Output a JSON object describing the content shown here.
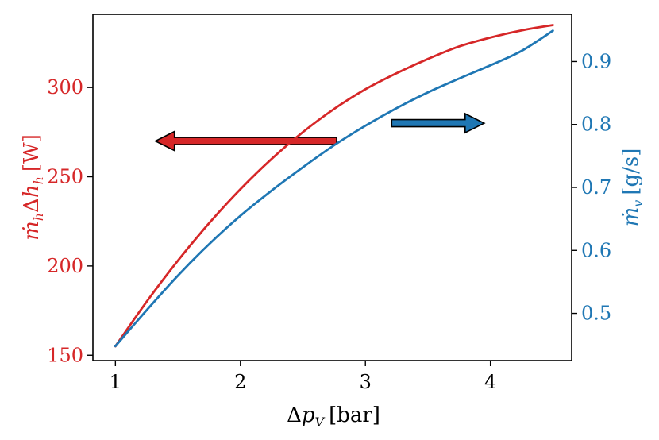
{
  "chart_data": {
    "type": "line",
    "x": [
      1.0,
      1.25,
      1.5,
      1.75,
      2.0,
      2.25,
      2.5,
      2.75,
      3.0,
      3.25,
      3.5,
      3.75,
      4.0,
      4.25,
      4.5
    ],
    "xlabel": "Δp_V [bar]",
    "xlim": [
      0.82,
      4.65
    ],
    "xticks": [
      "1",
      "2",
      "3",
      "4"
    ],
    "series": [
      {
        "name": "ṁ_h Δh_h",
        "axis": "left",
        "color": "#d62728",
        "values": [
          155,
          180,
          203,
          224,
          243,
          260,
          275,
          288,
          299,
          308,
          316,
          323,
          328,
          332,
          335
        ]
      },
      {
        "name": "ṁ_v",
        "axis": "right",
        "color": "#1f77b4",
        "values": [
          0.448,
          0.505,
          0.56,
          0.61,
          0.655,
          0.695,
          0.732,
          0.767,
          0.798,
          0.826,
          0.851,
          0.873,
          0.894,
          0.917,
          0.949
        ]
      }
    ],
    "y_left": {
      "label": "ṁ_h Δh_h [W]",
      "ylim": [
        147,
        341
      ],
      "ticks": [
        "150",
        "200",
        "250",
        "300"
      ],
      "color": "#d62728"
    },
    "y_right": {
      "label": "ṁ_v [g/s]",
      "ylim": [
        0.425,
        0.975
      ],
      "ticks": [
        "0.5",
        "0.6",
        "0.7",
        "0.8",
        "0.9"
      ],
      "color": "#1f77b4"
    },
    "annotations": [
      {
        "type": "arrow",
        "direction": "left",
        "color": "#d62728",
        "x_from": 2.77,
        "x_to": 1.32,
        "y_left": 270
      },
      {
        "type": "arrow",
        "direction": "right",
        "color": "#1f77b4",
        "x_from": 3.21,
        "x_to": 3.95,
        "y_left": 280
      }
    ]
  }
}
